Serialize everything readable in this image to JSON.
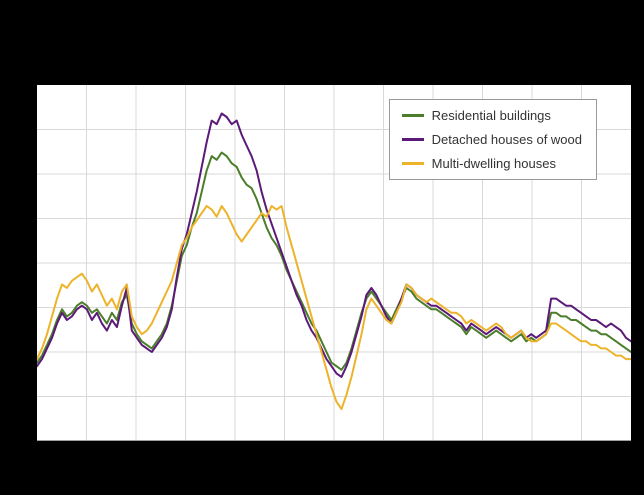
{
  "page": {
    "background": "#000000",
    "plot_background": "#ffffff"
  },
  "legend": {
    "items": [
      {
        "label": "Residential buildings",
        "color": "#4b7d2a"
      },
      {
        "label": "Detached houses of wood",
        "color": "#5c1a78"
      },
      {
        "label": "Multi-dwelling houses",
        "color": "#edb32a"
      }
    ]
  },
  "chart_data": {
    "type": "line",
    "title": "",
    "xlabel": "",
    "ylabel": "",
    "note": "Axis tick labels are not visible in the screenshot (hidden by black margins); series values are estimated as percent of plot height from bottom (0) to top (100), sampled at 120 evenly spaced points left-to-right.",
    "legend_position": "top-right inside plot",
    "grid": {
      "on": true,
      "v_divisions": 12,
      "h_divisions": 8,
      "color": "#d8d8d8",
      "axis_line_color": "#a0a0a0"
    },
    "x_points": 120,
    "series": [
      {
        "name": "Residential buildings",
        "color": "#4b7d2a",
        "values_pct_of_height": [
          22,
          24,
          27,
          30,
          34,
          37,
          35,
          36,
          38,
          39,
          38,
          36,
          37,
          35,
          33,
          36,
          34,
          39,
          41,
          33,
          30,
          28,
          27,
          26,
          28,
          30,
          33,
          38,
          45,
          52,
          55,
          60,
          64,
          70,
          76,
          80,
          79,
          81,
          80,
          78,
          77,
          74,
          72,
          71,
          68,
          64,
          60,
          57,
          55,
          52,
          48,
          45,
          42,
          39,
          36,
          33,
          31,
          28,
          25,
          22,
          21,
          20,
          22,
          26,
          31,
          36,
          40,
          42,
          40,
          38,
          36,
          34,
          37,
          40,
          43,
          42,
          40,
          39,
          38,
          37,
          37,
          36,
          35,
          34,
          33,
          32,
          30,
          32,
          31,
          30,
          29,
          30,
          31,
          30,
          29,
          28,
          29,
          30,
          28,
          29,
          28,
          29,
          30,
          36,
          36,
          35,
          35,
          34,
          34,
          33,
          32,
          31,
          31,
          30,
          30,
          29,
          28,
          27,
          26,
          25
        ]
      },
      {
        "name": "Detached houses of wood",
        "color": "#5c1a78",
        "values_pct_of_height": [
          21,
          23,
          26,
          29,
          33,
          36,
          34,
          35,
          37,
          38,
          37,
          34,
          36,
          33,
          31,
          34,
          32,
          38,
          43,
          31,
          29,
          27,
          26,
          25,
          27,
          29,
          32,
          37,
          46,
          54,
          58,
          64,
          70,
          77,
          84,
          90,
          89,
          92,
          91,
          89,
          90,
          86,
          83,
          80,
          76,
          70,
          65,
          61,
          57,
          53,
          49,
          45,
          41,
          38,
          34,
          31,
          29,
          26,
          23,
          21,
          19,
          18,
          21,
          25,
          30,
          35,
          41,
          43,
          41,
          38,
          35,
          33,
          36,
          40,
          44,
          43,
          41,
          40,
          39,
          38,
          38,
          37,
          36,
          35,
          34,
          33,
          31,
          33,
          32,
          31,
          30,
          31,
          32,
          31,
          30,
          29,
          30,
          31,
          29,
          30,
          29,
          30,
          31,
          40,
          40,
          39,
          38,
          38,
          37,
          36,
          35,
          34,
          34,
          33,
          32,
          33,
          32,
          31,
          29,
          28
        ]
      },
      {
        "name": "Multi-dwelling houses",
        "color": "#edb32a",
        "values_pct_of_height": [
          23,
          26,
          30,
          35,
          40,
          44,
          43,
          45,
          46,
          47,
          45,
          42,
          44,
          41,
          38,
          40,
          37,
          42,
          44,
          35,
          32,
          30,
          31,
          33,
          36,
          39,
          42,
          45,
          50,
          55,
          57,
          60,
          62,
          64,
          66,
          65,
          63,
          66,
          64,
          61,
          58,
          56,
          58,
          60,
          62,
          64,
          63,
          66,
          65,
          66,
          60,
          55,
          50,
          45,
          40,
          35,
          30,
          25,
          20,
          15,
          11,
          9,
          13,
          18,
          24,
          30,
          37,
          40,
          38,
          36,
          34,
          33,
          36,
          39,
          44,
          43,
          41,
          40,
          39,
          40,
          39,
          38,
          37,
          36,
          36,
          35,
          33,
          34,
          33,
          32,
          31,
          32,
          33,
          32,
          30,
          29,
          30,
          31,
          29,
          28,
          28,
          29,
          30,
          33,
          33,
          32,
          31,
          30,
          29,
          28,
          28,
          27,
          27,
          26,
          26,
          25,
          24,
          24,
          23,
          23
        ]
      }
    ]
  }
}
